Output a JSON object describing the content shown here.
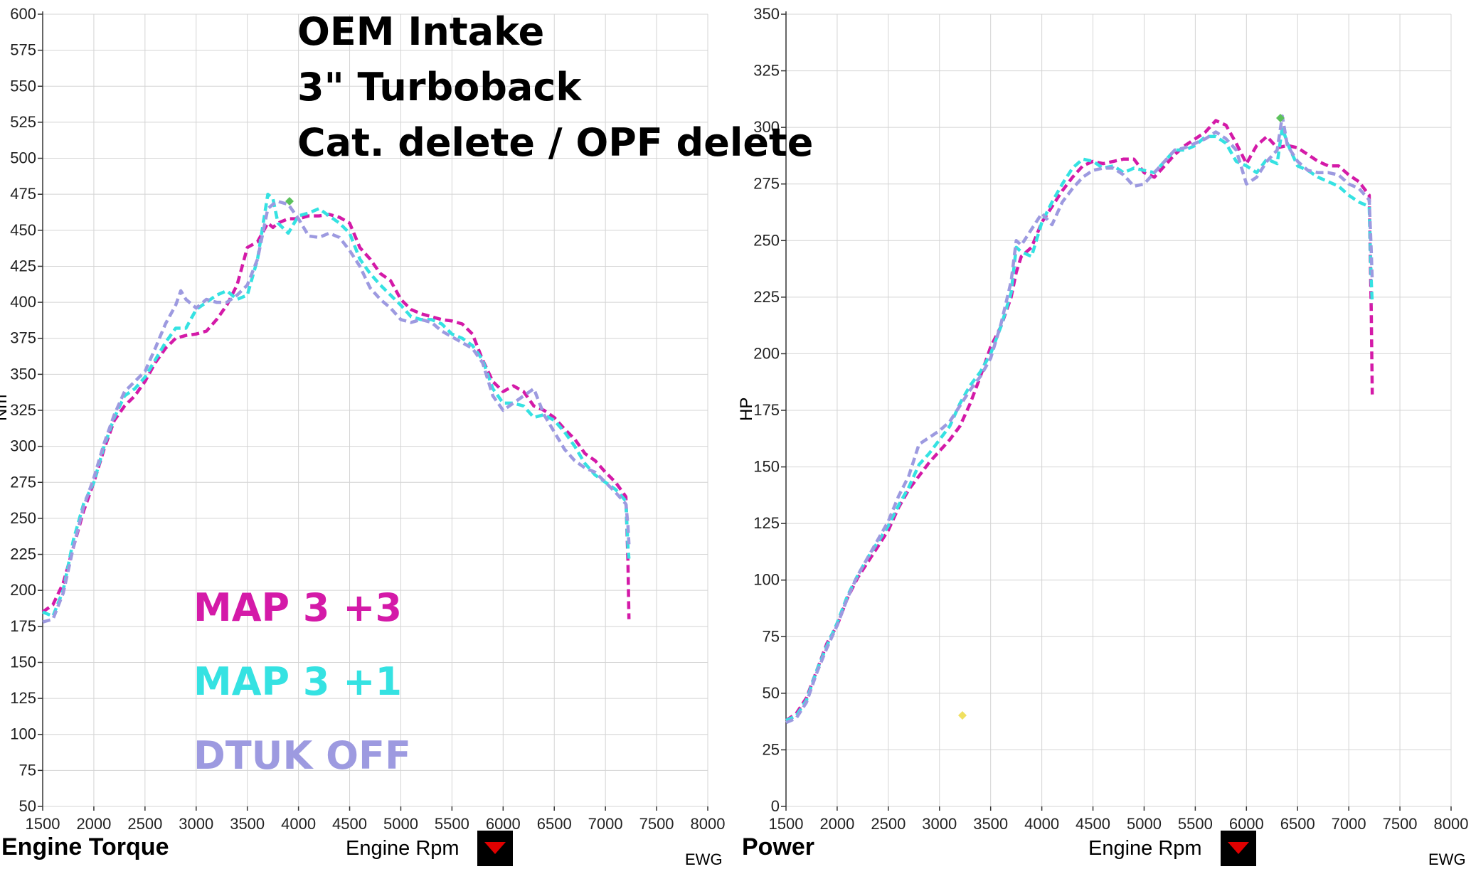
{
  "overlay": {
    "lines": [
      "OEM Intake",
      "3\" Turboback",
      "Cat. delete / OPF delete"
    ]
  },
  "legend": [
    {
      "name": "MAP 3 +3",
      "color": "#d41aa8"
    },
    {
      "name": "MAP 3 +1",
      "color": "#35e2e2"
    },
    {
      "name": "DTUK OFF",
      "color": "#9d9ae0"
    }
  ],
  "footer": {
    "left_title": "Engine Torque",
    "right_title": "Power",
    "xlabel": "Engine Rpm",
    "ewg": "EWG",
    "dropdown_icon": "triangle-down-icon"
  },
  "colors": {
    "map3_3": "#d41aa8",
    "map3_1": "#35e2e2",
    "dtuk_off": "#9d9ae0",
    "grid": "#d4d4d4",
    "dropdown_bg": "#000000",
    "dropdown_arrow": "#e00000"
  },
  "chart_data": [
    {
      "type": "line",
      "title": "Engine Torque",
      "xlabel": "Engine Rpm",
      "ylabel": "Nm",
      "xlim": [
        1500,
        8000
      ],
      "ylim": [
        50,
        600
      ],
      "xticks": [
        1500,
        2000,
        2500,
        3000,
        3500,
        4000,
        4500,
        5000,
        5500,
        6000,
        6500,
        7000,
        7500,
        8000
      ],
      "yticks": [
        50,
        75,
        100,
        125,
        150,
        175,
        200,
        225,
        250,
        275,
        300,
        325,
        350,
        375,
        400,
        425,
        450,
        475,
        500,
        525,
        550,
        575,
        600
      ],
      "grid": true,
      "series": [
        {
          "name": "MAP 3 +3",
          "color": "#d41aa8",
          "x": [
            1500,
            1600,
            1700,
            1800,
            1900,
            2000,
            2100,
            2200,
            2300,
            2400,
            2500,
            2600,
            2700,
            2800,
            2900,
            3000,
            3100,
            3200,
            3300,
            3400,
            3500,
            3600,
            3700,
            3750,
            3800,
            3900,
            4000,
            4100,
            4200,
            4300,
            4400,
            4500,
            4600,
            4700,
            4800,
            4900,
            5000,
            5100,
            5200,
            5300,
            5400,
            5500,
            5600,
            5700,
            5800,
            5900,
            6000,
            6100,
            6200,
            6300,
            6400,
            6500,
            6600,
            6700,
            6800,
            6900,
            7000,
            7100,
            7200,
            7220,
            7230
          ],
          "y": [
            185,
            190,
            205,
            230,
            255,
            275,
            298,
            318,
            328,
            335,
            345,
            358,
            368,
            375,
            377,
            378,
            380,
            388,
            398,
            412,
            438,
            442,
            455,
            452,
            455,
            458,
            458,
            460,
            460,
            461,
            459,
            455,
            438,
            430,
            420,
            415,
            402,
            395,
            392,
            390,
            388,
            387,
            385,
            378,
            360,
            345,
            338,
            342,
            338,
            328,
            325,
            320,
            312,
            305,
            295,
            290,
            282,
            275,
            265,
            220,
            180
          ]
        },
        {
          "name": "MAP 3 +1",
          "color": "#35e2e2",
          "x": [
            1500,
            1600,
            1700,
            1800,
            1900,
            2000,
            2100,
            2200,
            2300,
            2400,
            2500,
            2600,
            2700,
            2800,
            2900,
            3000,
            3100,
            3200,
            3300,
            3400,
            3500,
            3600,
            3700,
            3750,
            3800,
            3900,
            4000,
            4100,
            4200,
            4300,
            4400,
            4500,
            4600,
            4700,
            4800,
            4900,
            5000,
            5100,
            5200,
            5300,
            5400,
            5500,
            5600,
            5700,
            5800,
            5900,
            6000,
            6100,
            6200,
            6300,
            6400,
            6500,
            6600,
            6700,
            6800,
            6900,
            7000,
            7100,
            7200,
            7220,
            7230
          ],
          "y": [
            185,
            182,
            200,
            235,
            260,
            275,
            300,
            320,
            335,
            340,
            348,
            360,
            372,
            382,
            382,
            395,
            400,
            405,
            408,
            402,
            405,
            430,
            475,
            472,
            455,
            448,
            460,
            462,
            465,
            460,
            455,
            448,
            430,
            420,
            412,
            405,
            398,
            390,
            388,
            388,
            385,
            378,
            375,
            370,
            360,
            340,
            330,
            330,
            328,
            320,
            322,
            318,
            310,
            300,
            288,
            280,
            275,
            270,
            262,
            230,
            222
          ]
        },
        {
          "name": "DTUK OFF",
          "color": "#9d9ae0",
          "x": [
            1500,
            1600,
            1700,
            1800,
            1900,
            2000,
            2100,
            2200,
            2300,
            2400,
            2500,
            2600,
            2700,
            2800,
            2850,
            2900,
            3000,
            3100,
            3200,
            3300,
            3400,
            3500,
            3600,
            3700,
            3750,
            3800,
            3900,
            4000,
            4100,
            4200,
            4300,
            4400,
            4500,
            4600,
            4700,
            4800,
            4900,
            5000,
            5100,
            5200,
            5300,
            5400,
            5500,
            5600,
            5700,
            5800,
            5900,
            6000,
            6100,
            6200,
            6300,
            6400,
            6500,
            6600,
            6700,
            6800,
            6900,
            7000,
            7100,
            7200,
            7220,
            7230
          ],
          "y": [
            178,
            180,
            198,
            230,
            258,
            278,
            302,
            322,
            338,
            345,
            352,
            368,
            385,
            398,
            408,
            402,
            396,
            402,
            400,
            400,
            405,
            412,
            430,
            465,
            468,
            470,
            468,
            458,
            446,
            445,
            448,
            445,
            436,
            425,
            410,
            402,
            396,
            388,
            386,
            388,
            386,
            380,
            376,
            372,
            368,
            358,
            335,
            325,
            330,
            335,
            340,
            322,
            310,
            298,
            290,
            285,
            282,
            275,
            268,
            260,
            245,
            232
          ]
        }
      ]
    },
    {
      "type": "line",
      "title": "Power",
      "xlabel": "Engine Rpm",
      "ylabel": "HP",
      "xlim": [
        1500,
        8000
      ],
      "ylim": [
        0,
        350
      ],
      "xticks": [
        1500,
        2000,
        2500,
        3000,
        3500,
        4000,
        4500,
        5000,
        5500,
        6000,
        6500,
        7000,
        7500,
        8000
      ],
      "yticks": [
        0,
        25,
        50,
        75,
        100,
        125,
        150,
        175,
        200,
        225,
        250,
        275,
        300,
        325,
        350
      ],
      "grid": true,
      "series": [
        {
          "name": "MAP 3 +3",
          "color": "#d41aa8",
          "x": [
            1500,
            1600,
            1700,
            1800,
            1900,
            2000,
            2100,
            2200,
            2300,
            2400,
            2500,
            2600,
            2700,
            2800,
            2900,
            3000,
            3100,
            3200,
            3300,
            3400,
            3500,
            3600,
            3700,
            3750,
            3800,
            3900,
            4000,
            4100,
            4200,
            4300,
            4400,
            4500,
            4600,
            4700,
            4800,
            4900,
            5000,
            5100,
            5200,
            5300,
            5400,
            5500,
            5600,
            5700,
            5800,
            5900,
            6000,
            6100,
            6200,
            6300,
            6400,
            6500,
            6600,
            6700,
            6800,
            6900,
            7000,
            7100,
            7200,
            7220,
            7230
          ],
          "y": [
            38,
            41,
            48,
            60,
            72,
            80,
            92,
            101,
            108,
            115,
            122,
            132,
            140,
            146,
            152,
            157,
            162,
            168,
            178,
            190,
            203,
            212,
            225,
            236,
            243,
            247,
            258,
            265,
            272,
            278,
            283,
            285,
            284,
            285,
            286,
            286,
            280,
            278,
            283,
            288,
            292,
            295,
            298,
            303,
            301,
            293,
            284,
            292,
            296,
            291,
            292,
            291,
            288,
            285,
            283,
            283,
            279,
            276,
            270,
            218,
            182
          ]
        },
        {
          "name": "MAP 3 +1",
          "color": "#35e2e2",
          "x": [
            1500,
            1600,
            1700,
            1800,
            1900,
            2000,
            2100,
            2200,
            2300,
            2400,
            2500,
            2600,
            2700,
            2800,
            2900,
            3000,
            3100,
            3200,
            3300,
            3400,
            3500,
            3600,
            3700,
            3750,
            3800,
            3900,
            4000,
            4100,
            4200,
            4300,
            4400,
            4500,
            4600,
            4700,
            4800,
            4900,
            5000,
            5100,
            5200,
            5300,
            5400,
            5500,
            5600,
            5700,
            5800,
            5900,
            6000,
            6100,
            6200,
            6300,
            6350,
            6400,
            6500,
            6600,
            6700,
            6800,
            6900,
            7000,
            7100,
            7200,
            7220,
            7230
          ],
          "y": [
            38,
            40,
            47,
            60,
            71,
            81,
            93,
            102,
            110,
            117,
            124,
            133,
            141,
            151,
            156,
            162,
            168,
            178,
            186,
            192,
            200,
            212,
            227,
            247,
            245,
            243,
            258,
            267,
            275,
            282,
            286,
            285,
            282,
            283,
            280,
            282,
            281,
            280,
            285,
            290,
            290,
            292,
            296,
            296,
            293,
            285,
            283,
            280,
            286,
            284,
            300,
            293,
            283,
            281,
            278,
            276,
            274,
            270,
            267,
            265,
            232,
            222
          ]
        },
        {
          "name": "DTUK OFF",
          "color": "#9d9ae0",
          "x": [
            1500,
            1600,
            1700,
            1800,
            1900,
            2000,
            2100,
            2200,
            2300,
            2400,
            2500,
            2600,
            2700,
            2800,
            2900,
            3000,
            3100,
            3200,
            3300,
            3400,
            3500,
            3600,
            3700,
            3750,
            3800,
            3900,
            4000,
            4100,
            4200,
            4300,
            4400,
            4500,
            4600,
            4700,
            4800,
            4900,
            5000,
            5100,
            5200,
            5300,
            5400,
            5500,
            5600,
            5700,
            5800,
            5900,
            6000,
            6100,
            6200,
            6300,
            6350,
            6400,
            6500,
            6600,
            6700,
            6800,
            6900,
            7000,
            7100,
            7200,
            7220,
            7230
          ],
          "y": [
            37,
            39,
            46,
            59,
            70,
            80,
            92,
            102,
            110,
            118,
            126,
            137,
            146,
            160,
            163,
            166,
            170,
            177,
            184,
            190,
            198,
            213,
            232,
            250,
            248,
            255,
            262,
            257,
            267,
            273,
            278,
            281,
            282,
            282,
            279,
            274,
            275,
            280,
            285,
            290,
            291,
            293,
            295,
            298,
            295,
            290,
            275,
            278,
            285,
            290,
            305,
            292,
            285,
            281,
            280,
            280,
            279,
            275,
            273,
            268,
            245,
            232
          ]
        }
      ]
    }
  ]
}
